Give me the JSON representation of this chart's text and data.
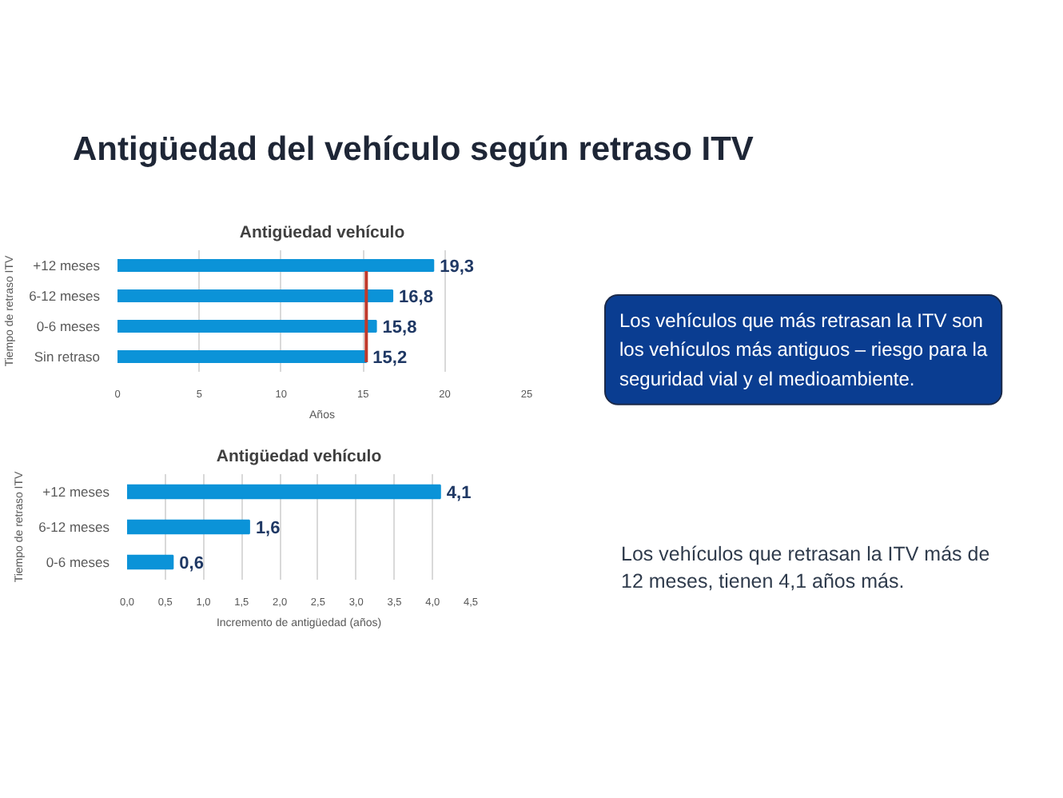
{
  "chart_data": [
    {
      "type": "bar",
      "orientation": "horizontal",
      "title": "Antigüedad vehículo",
      "xlabel": "Años",
      "ylabel": "Tiempo de retraso ITV",
      "categories": [
        "+12 meses",
        "6-12 meses",
        "0-6 meses",
        "Sin retraso"
      ],
      "values": [
        19.3,
        16.8,
        15.8,
        15.2
      ],
      "color": "#0b93d8",
      "value_labels": [
        "19,3",
        "16,8",
        "15,8",
        "15,2"
      ],
      "xlim": [
        0,
        25
      ],
      "xticks": [
        0,
        5,
        10,
        15,
        20,
        25
      ],
      "grid": "x",
      "ref_lines": [
        {
          "axis": "x",
          "value": 15.2,
          "color": "#c0392b"
        }
      ]
    },
    {
      "type": "bar",
      "orientation": "horizontal",
      "title": "Antigüedad vehículo",
      "xlabel": "Incremento de antigüedad (años)",
      "ylabel": "Tiempo de retraso ITV",
      "categories": [
        "+12 meses",
        "6-12 meses",
        "0-6 meses"
      ],
      "values": [
        4.1,
        1.6,
        0.6
      ],
      "color": "#0b93d8",
      "value_labels": [
        "4,1",
        "1,6",
        "0,6"
      ],
      "xlim": [
        0,
        4.5
      ],
      "xticks": [
        {
          "value": 0,
          "label": "0,0"
        },
        {
          "value": 0.5,
          "label": "0,5"
        },
        {
          "value": 1,
          "label": "1,0"
        },
        {
          "value": 1.5,
          "label": "1,5"
        },
        {
          "value": 2,
          "label": "2,0"
        },
        {
          "value": 2.5,
          "label": "2,5"
        },
        {
          "value": 3,
          "label": "3,0"
        },
        {
          "value": 3.5,
          "label": "3,5"
        },
        {
          "value": 4,
          "label": "4,0"
        },
        {
          "value": 4.5,
          "label": "4,5"
        }
      ],
      "grid": "x"
    },
    {
      "type": "other",
      "title": "Antigüedad del vehículo según retraso ITV",
      "annotations": [
        "Los vehículos que más retrasan la ITV son los vehículos más antiguos – riesgo para la seguridad vial y el medioambiente.",
        "Los vehículos que retrasan la ITV más de 12 meses, tienen 4,1 años más."
      ]
    }
  ]
}
